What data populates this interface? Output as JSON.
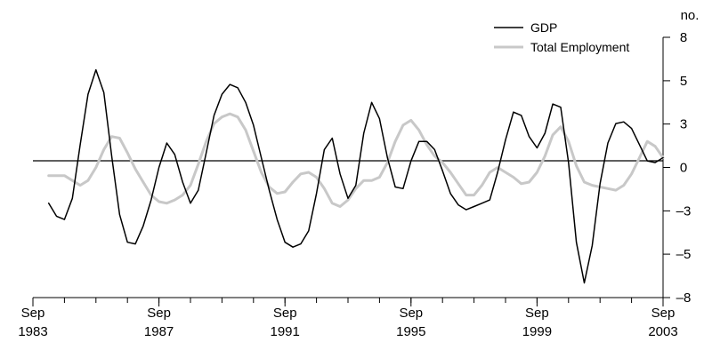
{
  "chart_data": {
    "type": "line",
    "title": "",
    "xlabel": "",
    "ylabel": "no.",
    "ylim": [
      -8,
      8
    ],
    "xlim": [
      1983.67,
      2003.67
    ],
    "y_ticks": [
      {
        "value": 8,
        "label": "8"
      },
      {
        "value": 5.33,
        "label": "5"
      },
      {
        "value": 2.67,
        "label": "3"
      },
      {
        "value": 0,
        "label": "0"
      },
      {
        "value": -2.67,
        "label": "–3"
      },
      {
        "value": -5.33,
        "label": "–5"
      },
      {
        "value": -8,
        "label": "–8"
      }
    ],
    "x_ticks": [
      {
        "value": 1983.67,
        "month": "Sep",
        "year": "1983"
      },
      {
        "value": 1987.67,
        "month": "Sep",
        "year": "1987"
      },
      {
        "value": 1991.67,
        "month": "Sep",
        "year": "1991"
      },
      {
        "value": 1995.67,
        "month": "Sep",
        "year": "1995"
      },
      {
        "value": 1999.67,
        "month": "Sep",
        "year": "1999"
      },
      {
        "value": 2003.67,
        "month": "Sep",
        "year": "2003"
      }
    ],
    "legend_position": "top-right",
    "grid": false,
    "zero_line": true,
    "series": [
      {
        "name": "GDP",
        "color": "#000000",
        "points": [
          [
            1984.17,
            -2.2
          ],
          [
            1984.42,
            -3.0
          ],
          [
            1984.67,
            -3.2
          ],
          [
            1984.92,
            -1.9
          ],
          [
            1985.17,
            1.4
          ],
          [
            1985.42,
            4.5
          ],
          [
            1985.67,
            6.0
          ],
          [
            1985.92,
            4.6
          ],
          [
            1986.17,
            0.7
          ],
          [
            1986.42,
            -2.9
          ],
          [
            1986.67,
            -4.6
          ],
          [
            1986.92,
            -4.7
          ],
          [
            1987.17,
            -3.6
          ],
          [
            1987.42,
            -2.0
          ],
          [
            1987.67,
            0.0
          ],
          [
            1987.92,
            1.5
          ],
          [
            1988.17,
            0.8
          ],
          [
            1988.42,
            -0.9
          ],
          [
            1988.67,
            -2.2
          ],
          [
            1988.92,
            -1.4
          ],
          [
            1989.17,
            0.9
          ],
          [
            1989.42,
            3.2
          ],
          [
            1989.67,
            4.5
          ],
          [
            1989.92,
            5.1
          ],
          [
            1990.17,
            4.9
          ],
          [
            1990.42,
            4.0
          ],
          [
            1990.67,
            2.6
          ],
          [
            1990.92,
            0.6
          ],
          [
            1991.17,
            -1.4
          ],
          [
            1991.42,
            -3.2
          ],
          [
            1991.67,
            -4.6
          ],
          [
            1991.92,
            -4.9
          ],
          [
            1992.17,
            -4.7
          ],
          [
            1992.42,
            -3.9
          ],
          [
            1992.67,
            -1.6
          ],
          [
            1992.92,
            1.1
          ],
          [
            1993.17,
            1.8
          ],
          [
            1993.42,
            -0.4
          ],
          [
            1993.67,
            -1.9
          ],
          [
            1993.92,
            -1.1
          ],
          [
            1994.17,
            2.1
          ],
          [
            1994.42,
            4.0
          ],
          [
            1994.67,
            3.0
          ],
          [
            1994.92,
            0.6
          ],
          [
            1995.17,
            -1.2
          ],
          [
            1995.42,
            -1.3
          ],
          [
            1995.67,
            0.4
          ],
          [
            1995.92,
            1.6
          ],
          [
            1996.17,
            1.6
          ],
          [
            1996.42,
            1.1
          ],
          [
            1996.67,
            -0.2
          ],
          [
            1996.92,
            -1.6
          ],
          [
            1997.17,
            -2.3
          ],
          [
            1997.42,
            -2.6
          ],
          [
            1997.67,
            -2.4
          ],
          [
            1997.92,
            -2.2
          ],
          [
            1998.17,
            -2.0
          ],
          [
            1998.42,
            -0.3
          ],
          [
            1998.67,
            1.7
          ],
          [
            1998.92,
            3.4
          ],
          [
            1999.17,
            3.2
          ],
          [
            1999.42,
            1.9
          ],
          [
            1999.67,
            1.2
          ],
          [
            1999.92,
            2.1
          ],
          [
            2000.17,
            3.9
          ],
          [
            2000.42,
            3.7
          ],
          [
            2000.67,
            0.3
          ],
          [
            2000.92,
            -4.6
          ],
          [
            2001.17,
            -7.1
          ],
          [
            2001.42,
            -4.8
          ],
          [
            2001.67,
            -1.0
          ],
          [
            2001.92,
            1.5
          ],
          [
            2002.17,
            2.7
          ],
          [
            2002.42,
            2.8
          ],
          [
            2002.67,
            2.4
          ],
          [
            2002.92,
            1.4
          ],
          [
            2003.17,
            0.4
          ],
          [
            2003.42,
            0.3
          ],
          [
            2003.67,
            0.6
          ]
        ]
      },
      {
        "name": "Total Employment",
        "color": "#c8c8c8",
        "points": [
          [
            1984.17,
            -0.5
          ],
          [
            1984.42,
            -0.5
          ],
          [
            1984.67,
            -0.5
          ],
          [
            1984.92,
            -0.8
          ],
          [
            1985.17,
            -1.1
          ],
          [
            1985.42,
            -0.8
          ],
          [
            1985.67,
            0.0
          ],
          [
            1985.92,
            1.1
          ],
          [
            1986.17,
            1.9
          ],
          [
            1986.42,
            1.8
          ],
          [
            1986.67,
            0.9
          ],
          [
            1986.92,
            -0.1
          ],
          [
            1987.17,
            -0.9
          ],
          [
            1987.42,
            -1.7
          ],
          [
            1987.67,
            -2.1
          ],
          [
            1987.92,
            -2.2
          ],
          [
            1988.17,
            -2.0
          ],
          [
            1988.42,
            -1.7
          ],
          [
            1988.67,
            -1.1
          ],
          [
            1988.92,
            0.2
          ],
          [
            1989.17,
            1.6
          ],
          [
            1989.42,
            2.7
          ],
          [
            1989.67,
            3.1
          ],
          [
            1989.92,
            3.3
          ],
          [
            1990.17,
            3.1
          ],
          [
            1990.42,
            2.3
          ],
          [
            1990.67,
            1.0
          ],
          [
            1990.92,
            -0.3
          ],
          [
            1991.17,
            -1.2
          ],
          [
            1991.42,
            -1.6
          ],
          [
            1991.67,
            -1.5
          ],
          [
            1991.92,
            -0.9
          ],
          [
            1992.17,
            -0.4
          ],
          [
            1992.42,
            -0.3
          ],
          [
            1992.67,
            -0.6
          ],
          [
            1992.92,
            -1.3
          ],
          [
            1993.17,
            -2.2
          ],
          [
            1993.42,
            -2.4
          ],
          [
            1993.67,
            -2.0
          ],
          [
            1993.92,
            -1.3
          ],
          [
            1994.17,
            -0.8
          ],
          [
            1994.42,
            -0.8
          ],
          [
            1994.67,
            -0.6
          ],
          [
            1994.92,
            0.3
          ],
          [
            1995.17,
            1.6
          ],
          [
            1995.42,
            2.6
          ],
          [
            1995.67,
            2.9
          ],
          [
            1995.92,
            2.3
          ],
          [
            1996.17,
            1.4
          ],
          [
            1996.42,
            0.7
          ],
          [
            1996.67,
            0.3
          ],
          [
            1996.92,
            -0.3
          ],
          [
            1997.17,
            -1.0
          ],
          [
            1997.42,
            -1.7
          ],
          [
            1997.67,
            -1.7
          ],
          [
            1997.92,
            -1.1
          ],
          [
            1998.17,
            -0.3
          ],
          [
            1998.42,
            0.0
          ],
          [
            1998.67,
            -0.3
          ],
          [
            1998.92,
            -0.6
          ],
          [
            1999.17,
            -1.0
          ],
          [
            1999.42,
            -0.9
          ],
          [
            1999.67,
            -0.3
          ],
          [
            1999.92,
            0.7
          ],
          [
            2000.17,
            2.0
          ],
          [
            2000.42,
            2.5
          ],
          [
            2000.67,
            1.6
          ],
          [
            2000.92,
            0.1
          ],
          [
            2001.17,
            -0.9
          ],
          [
            2001.42,
            -1.1
          ],
          [
            2001.67,
            -1.2
          ],
          [
            2001.92,
            -1.3
          ],
          [
            2002.17,
            -1.4
          ],
          [
            2002.42,
            -1.1
          ],
          [
            2002.67,
            -0.4
          ],
          [
            2002.92,
            0.6
          ],
          [
            2003.17,
            1.6
          ],
          [
            2003.42,
            1.3
          ],
          [
            2003.67,
            0.6
          ]
        ]
      }
    ]
  }
}
